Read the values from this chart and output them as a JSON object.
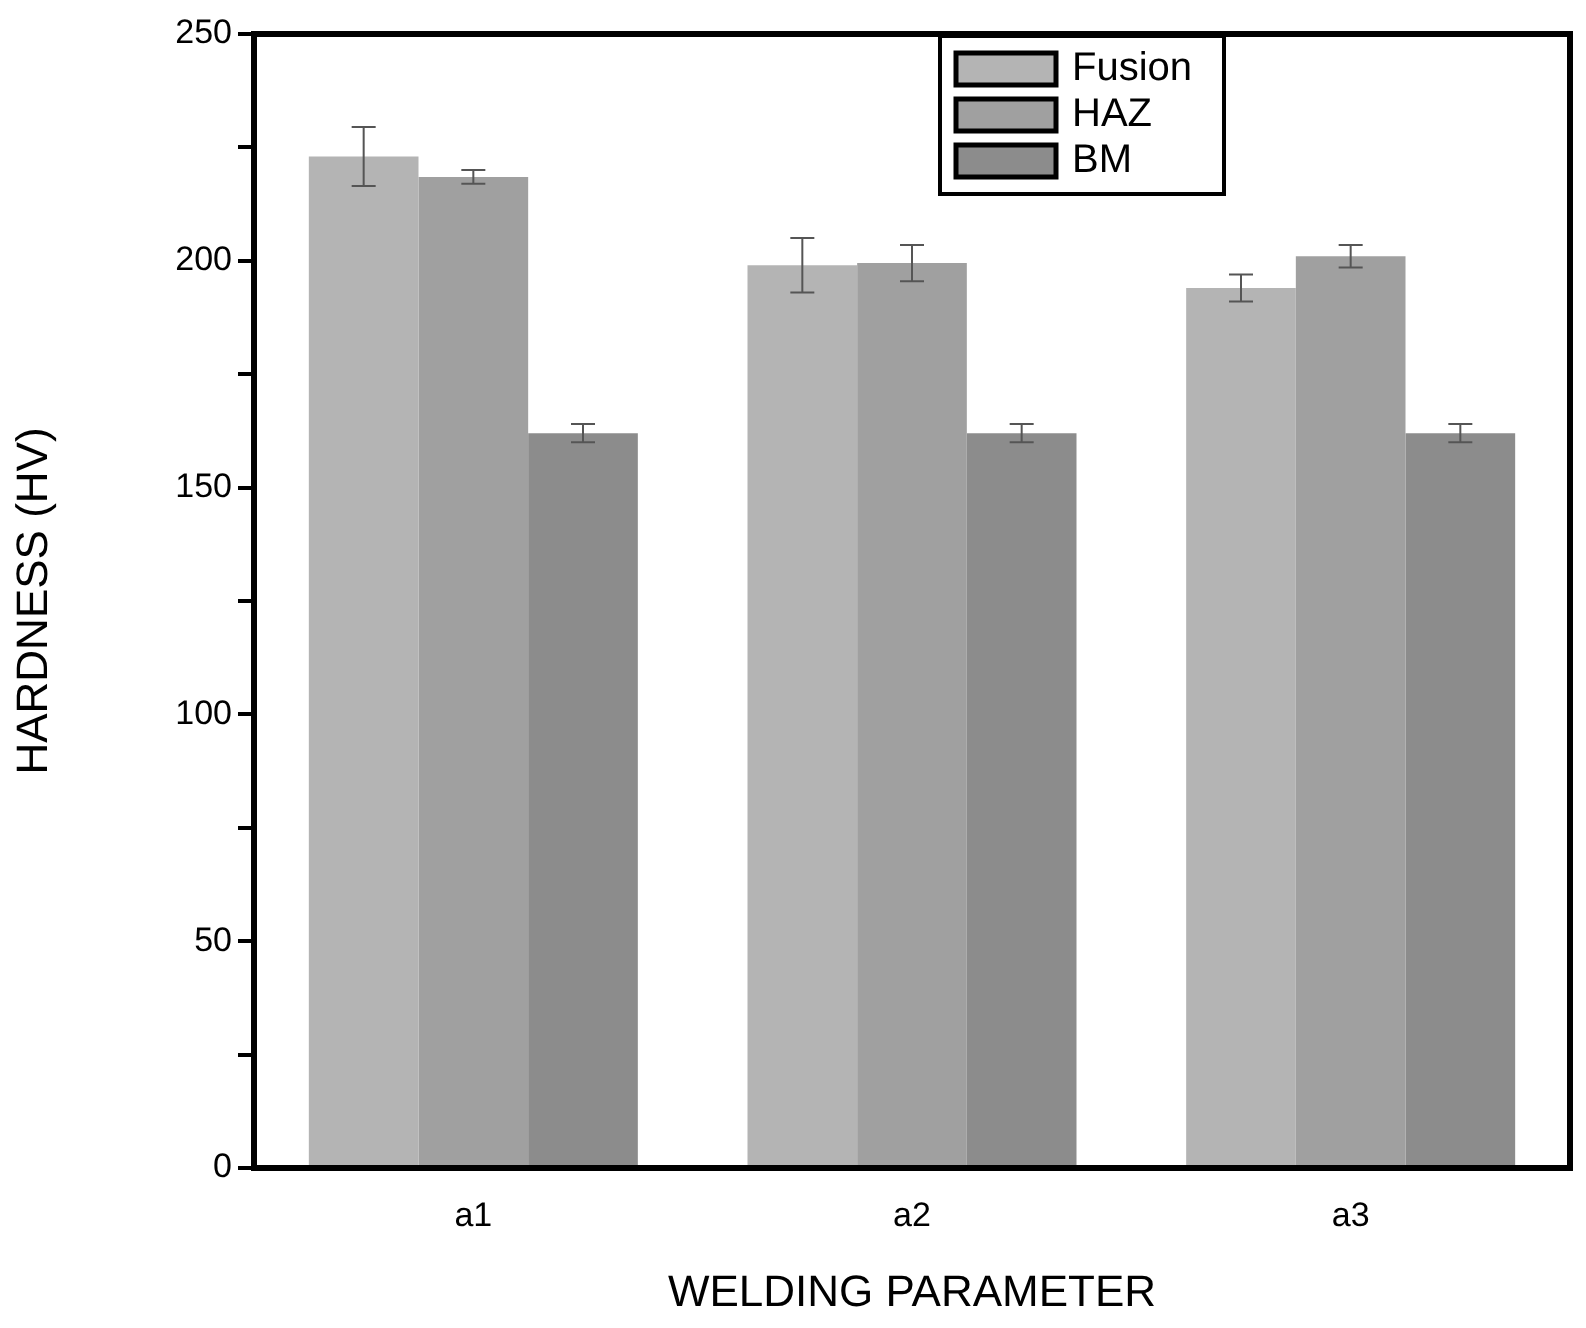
{
  "chart_data": {
    "type": "bar",
    "xlabel": "WELDING PARAMETER",
    "ylabel": "HARDNESS (HV)",
    "categories": [
      "a1",
      "a2",
      "a3"
    ],
    "series": [
      {
        "name": "Fusion",
        "color": "#b4b4b4",
        "values": [
          223,
          199,
          194
        ],
        "errors": [
          6.5,
          6,
          3
        ]
      },
      {
        "name": "HAZ",
        "color": "#a0a0a0",
        "values": [
          218.5,
          199.5,
          201
        ],
        "errors": [
          1.5,
          4,
          2.5
        ]
      },
      {
        "name": "BM",
        "color": "#8c8c8c",
        "values": [
          162,
          162,
          162
        ],
        "errors": [
          2,
          2,
          2
        ]
      }
    ],
    "ylim": [
      0,
      250
    ],
    "yticks": [
      0,
      {
        "value": 25,
        "label": null
      },
      50,
      {
        "value": 75,
        "label": null
      },
      100,
      {
        "value": 125,
        "label": null
      },
      150,
      {
        "value": 175,
        "label": null
      },
      200,
      {
        "value": 225,
        "label": null
      },
      250
    ],
    "grid": false,
    "legend": "top right"
  }
}
